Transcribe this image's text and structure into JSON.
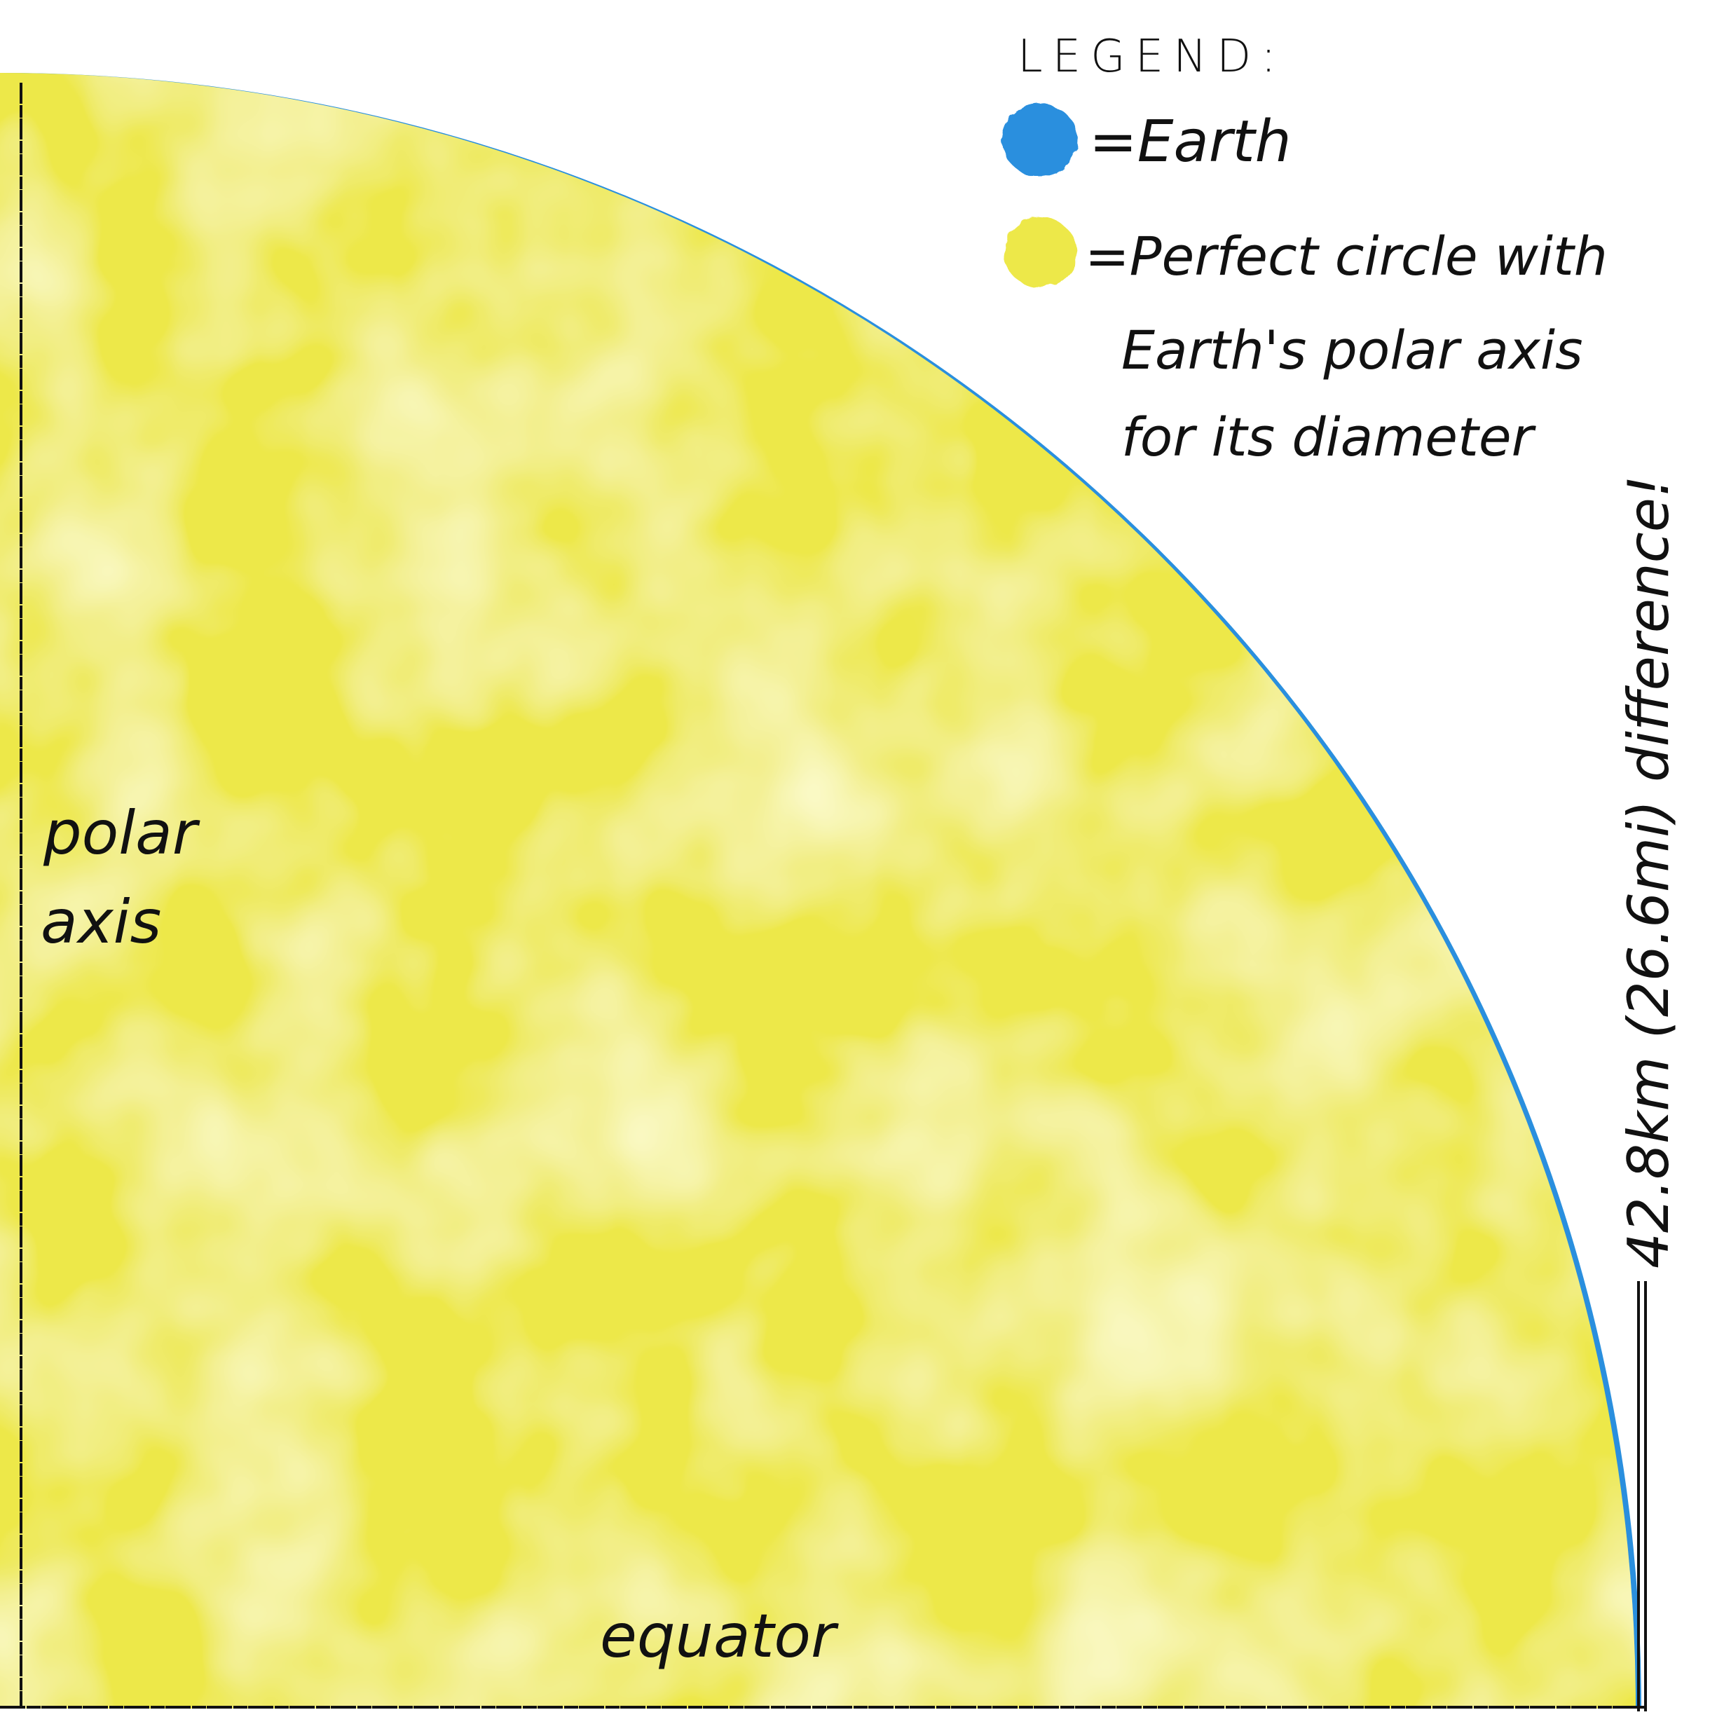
{
  "legend": {
    "title": "LEGEND:",
    "items": [
      {
        "label": "=Earth",
        "color": "#2a8fde"
      },
      {
        "label_lines": [
          "=Perfect circle with",
          "Earth's polar axis",
          "for its diameter"
        ],
        "color": "#ede84a"
      }
    ]
  },
  "labels": {
    "polar_axis_line1": "polar",
    "polar_axis_line2": "axis",
    "equator": "equator",
    "difference": "42.8km (26.6mi) difference!"
  },
  "colors": {
    "earth": "#2a8fde",
    "perfect_circle": "#ede84a",
    "ink": "#111111",
    "background": "#ffffff"
  }
}
